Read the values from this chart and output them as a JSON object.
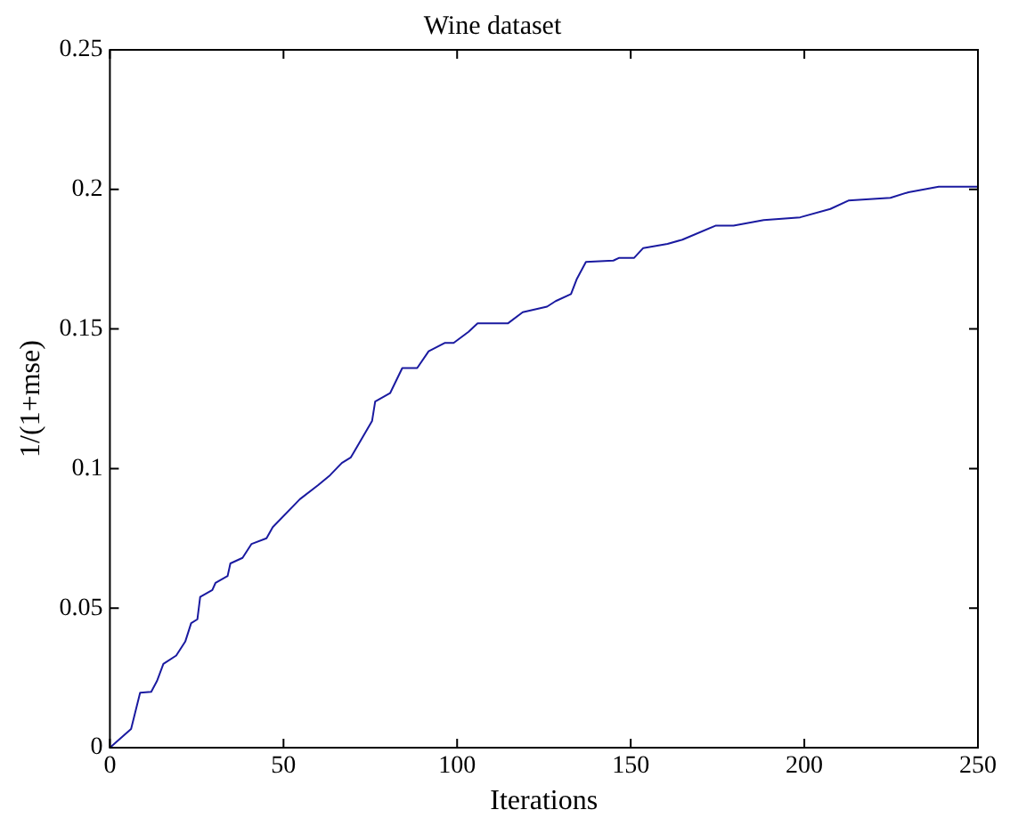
{
  "chart_data": {
    "type": "line",
    "title": "Wine dataset",
    "xlabel": "Iterations",
    "ylabel": "1/(1+mse)",
    "xlim": [
      0,
      250
    ],
    "xticks": [
      0,
      50,
      100,
      150,
      200,
      250
    ],
    "ylim": [
      0,
      0.25
    ],
    "yticks": [
      0,
      0.05,
      0.1,
      0.15,
      0.2,
      0.25
    ],
    "grid": false,
    "legend": false,
    "marker": "none",
    "line_style": "solid",
    "series": [
      {
        "color": "#1a1aa0",
        "x": [
          0,
          6.1,
          8.7,
          11.9,
          13.6,
          15.4,
          19.1,
          21.7,
          23.4,
          25.2,
          26,
          29.5,
          30.4,
          33.9,
          34.7,
          38.2,
          40.8,
          45.1,
          46.9,
          54.7,
          59.9,
          63.4,
          66.8,
          69.4,
          75.5,
          76.4,
          80.7,
          84.2,
          88.5,
          91.8,
          96.4,
          99,
          103.3,
          105.9,
          114.6,
          118.9,
          125.9,
          128.4,
          132.8,
          134.5,
          137.1,
          145,
          146.7,
          151,
          153.6,
          160.6,
          164.9,
          174.4,
          179.6,
          188.3,
          198.8,
          207.5,
          212.7,
          224.8,
          230,
          238.7,
          250
        ],
        "values": [
          0,
          0.0067,
          0.0197,
          0.02,
          0.024,
          0.03,
          0.033,
          0.038,
          0.0446,
          0.046,
          0.054,
          0.0565,
          0.059,
          0.0615,
          0.066,
          0.068,
          0.073,
          0.075,
          0.079,
          0.089,
          0.094,
          0.0976,
          0.102,
          0.104,
          0.117,
          0.124,
          0.127,
          0.136,
          0.136,
          0.142,
          0.145,
          0.145,
          0.149,
          0.152,
          0.152,
          0.156,
          0.158,
          0.16,
          0.1625,
          0.168,
          0.174,
          0.1745,
          0.1755,
          0.1755,
          0.179,
          0.1805,
          0.182,
          0.187,
          0.187,
          0.189,
          0.19,
          0.193,
          0.196,
          0.197,
          0.199,
          0.201,
          0.201
        ]
      }
    ]
  }
}
